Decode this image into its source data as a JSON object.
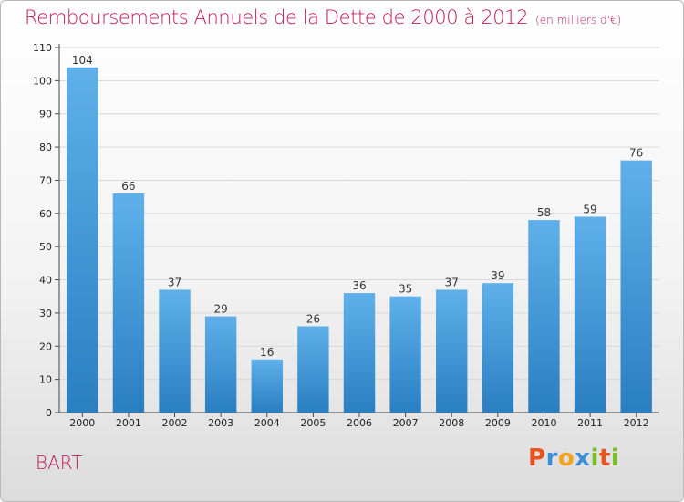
{
  "header": {
    "title": "Remboursements Annuels de la Dette de 2000 à 2012",
    "unit": "(en milliers d'€)"
  },
  "footer": {
    "commune": "BART",
    "logo": {
      "letters": [
        "P",
        "r",
        "o",
        "x",
        "i",
        "t",
        "i"
      ],
      "colors": [
        "#e8541c",
        "#3a8fd6",
        "#f2a21b",
        "#3a8fd6",
        "#7cbd2a",
        "#e8541c",
        "#7cbd2a"
      ]
    }
  },
  "colors": {
    "bar_top": "#5fb0ea",
    "bar_bottom": "#2a7fc1",
    "title": "#c2185b"
  },
  "chart_data": {
    "type": "bar",
    "title": "Remboursements Annuels de la Dette de 2000 à 2012",
    "subtitle": "(en milliers d'€)",
    "categories": [
      "2000",
      "2001",
      "2002",
      "2003",
      "2004",
      "2005",
      "2006",
      "2007",
      "2008",
      "2009",
      "2010",
      "2011",
      "2012"
    ],
    "values": [
      104,
      66,
      37,
      29,
      16,
      26,
      36,
      35,
      37,
      39,
      58,
      59,
      76
    ],
    "ylim": [
      0,
      110
    ],
    "yticks": [
      0,
      10,
      20,
      30,
      40,
      50,
      60,
      70,
      80,
      90,
      100,
      110
    ],
    "grid": true,
    "data_labels": true
  }
}
